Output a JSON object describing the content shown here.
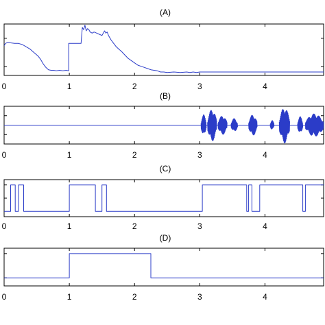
{
  "colors": {
    "series": "#2b3cc8",
    "axes": "#000000",
    "background": "#ffffff"
  },
  "chart_data": [
    {
      "id": "A",
      "type": "line",
      "title": "(A)",
      "xlim": [
        0,
        4.9
      ],
      "ylim": [
        0.1,
        1.0
      ],
      "yticks": [
        0.25,
        0.75
      ],
      "xticks": [
        0,
        1,
        2,
        3,
        4
      ],
      "xtick_labels": [
        "0",
        "1",
        "2",
        "3",
        "4"
      ],
      "grid": false,
      "series": [
        {
          "x": [
            0,
            0.02,
            0.06,
            0.1,
            0.16,
            0.22,
            0.28,
            0.34,
            0.4,
            0.46,
            0.52,
            0.56,
            0.6,
            0.64,
            0.68,
            0.72,
            0.76,
            0.8,
            0.85,
            0.9,
            0.95,
            0.99,
            0.99,
            1.02,
            1.1,
            1.18,
            1.2,
            1.22,
            1.24,
            1.26,
            1.28,
            1.3,
            1.32,
            1.35,
            1.38,
            1.42,
            1.46,
            1.5,
            1.54,
            1.56,
            1.58,
            1.6,
            1.64,
            1.68,
            1.72,
            1.76,
            1.8,
            1.85,
            1.9,
            1.95,
            2.0,
            2.05,
            2.1,
            2.15,
            2.2,
            2.25,
            2.3,
            2.35,
            2.4,
            2.45,
            2.5,
            2.6,
            2.7,
            2.8,
            2.85,
            2.9,
            2.95,
            3.0,
            3.02,
            3.5,
            4.0,
            4.5,
            4.9
          ],
          "y": [
            0.62,
            0.66,
            0.68,
            0.67,
            0.66,
            0.66,
            0.64,
            0.6,
            0.56,
            0.5,
            0.44,
            0.38,
            0.3,
            0.24,
            0.2,
            0.19,
            0.19,
            0.18,
            0.19,
            0.18,
            0.19,
            0.18,
            0.66,
            0.66,
            0.66,
            0.66,
            0.94,
            0.9,
            0.98,
            0.88,
            0.92,
            0.9,
            0.86,
            0.84,
            0.86,
            0.84,
            0.82,
            0.8,
            0.88,
            0.84,
            0.86,
            0.8,
            0.72,
            0.66,
            0.6,
            0.56,
            0.52,
            0.46,
            0.4,
            0.36,
            0.32,
            0.28,
            0.26,
            0.24,
            0.22,
            0.2,
            0.19,
            0.18,
            0.16,
            0.16,
            0.15,
            0.16,
            0.15,
            0.16,
            0.15,
            0.16,
            0.15,
            0.16,
            0.16,
            0.16,
            0.16,
            0.16,
            0.16
          ]
        }
      ]
    },
    {
      "id": "B",
      "type": "line",
      "title": "(B)",
      "xlim": [
        0,
        4.9
      ],
      "ylim": [
        -1.0,
        1.0
      ],
      "yticks": [
        -0.5,
        0.5
      ],
      "xticks": [
        0,
        1,
        2,
        3,
        4
      ],
      "xtick_labels": [
        "0",
        "1",
        "2",
        "3",
        "4"
      ],
      "grid": false,
      "series": [
        {
          "baseline_x": [
            0,
            3.02
          ],
          "baseline_y": 0,
          "bursts": [
            {
              "x": [
                3.02,
                3.1
              ],
              "amp": 0.55
            },
            {
              "x": [
                3.12,
                3.26
              ],
              "amp": 0.85
            },
            {
              "x": [
                3.28,
                3.42
              ],
              "amp": 0.5
            },
            {
              "x": [
                3.48,
                3.58
              ],
              "amp": 0.35
            },
            {
              "x": [
                3.75,
                3.88
              ],
              "amp": 0.55
            },
            {
              "x": [
                4.08,
                4.14
              ],
              "amp": 0.25
            },
            {
              "x": [
                4.22,
                4.38
              ],
              "amp": 0.95
            },
            {
              "x": [
                4.5,
                4.58
              ],
              "amp": 0.45
            },
            {
              "x": [
                4.62,
                4.9
              ],
              "amp": 0.6
            }
          ]
        }
      ]
    },
    {
      "id": "C",
      "type": "line",
      "title": "(C)",
      "xlim": [
        0,
        4.9
      ],
      "ylim": [
        -0.2,
        1.2
      ],
      "yticks": [
        0.5,
        1.0
      ],
      "xticks": [
        0,
        1,
        2,
        3,
        4
      ],
      "xtick_labels": [
        "0",
        "1",
        "2",
        "3",
        "4"
      ],
      "grid": false,
      "series": [
        {
          "x": [
            0,
            0.1,
            0.1,
            0.17,
            0.17,
            0.22,
            0.22,
            0.3,
            0.3,
            1.0,
            1.0,
            1.4,
            1.4,
            1.5,
            1.5,
            1.57,
            1.57,
            1.6,
            1.6,
            3.04,
            3.04,
            3.72,
            3.72,
            3.75,
            3.75,
            3.8,
            3.8,
            3.92,
            3.92,
            3.95,
            3.95,
            4.58,
            4.58,
            4.62,
            4.62,
            4.9
          ],
          "y": [
            0,
            0,
            1,
            1,
            0,
            0,
            1,
            1,
            0,
            0,
            1,
            1,
            0,
            0,
            1,
            1,
            0,
            0,
            0,
            0,
            1,
            1,
            0,
            0,
            1,
            1,
            0,
            0,
            1,
            1,
            1,
            1,
            0,
            0,
            1,
            1
          ]
        }
      ]
    },
    {
      "id": "D",
      "type": "line",
      "title": "(D)",
      "xlim": [
        0,
        4.9
      ],
      "ylim": [
        -0.2,
        1.2
      ],
      "yticks": [
        0.1,
        1.0
      ],
      "xticks": [
        0,
        1,
        2,
        3,
        4
      ],
      "xtick_labels": [
        "0",
        "1",
        "2",
        "3",
        "4"
      ],
      "grid": false,
      "series": [
        {
          "x": [
            0,
            1.0,
            1.0,
            2.25,
            2.25,
            4.9
          ],
          "y": [
            0.1,
            0.1,
            1.0,
            1.0,
            0.1,
            0.1
          ]
        }
      ]
    }
  ]
}
